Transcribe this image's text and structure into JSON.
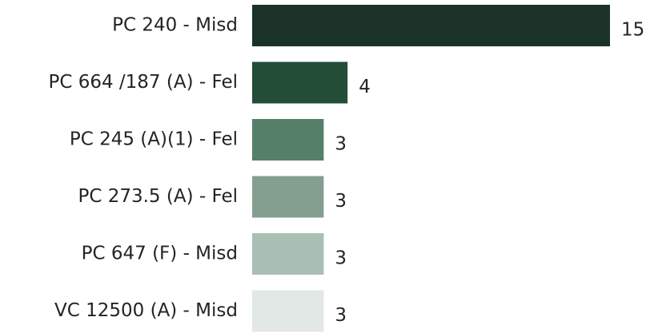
{
  "chart_data": {
    "type": "bar",
    "orientation": "horizontal",
    "categories": [
      "PC 240 - Misd",
      "PC 664 /187 (A) - Fel",
      "PC 245 (A)(1) - Fel",
      "PC 273.5 (A) - Fel",
      "PC 647 (F) - Misd",
      "VC 12500 (A) - Misd"
    ],
    "values": [
      15,
      4,
      3,
      3,
      3,
      3
    ],
    "colors": [
      "#1a3326",
      "#234d37",
      "#557f69",
      "#849e90",
      "#aabfb4",
      "#e2e8e5"
    ]
  }
}
